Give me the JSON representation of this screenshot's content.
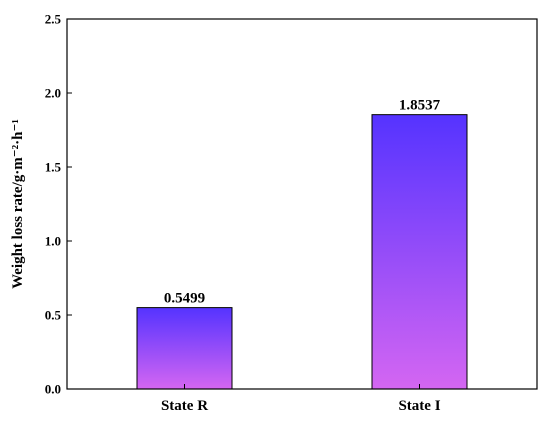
{
  "chart_data": {
    "type": "bar",
    "categories": [
      "State R",
      "State I"
    ],
    "values": [
      0.5499,
      1.8537
    ],
    "value_labels": [
      "0.5499",
      "1.8537"
    ],
    "title": "",
    "xlabel": "",
    "ylabel": "Weight loss rate/g·m⁻²·h⁻¹",
    "ylim": [
      0,
      2.5
    ],
    "yticks": [
      "0.0",
      "0.5",
      "1.0",
      "1.5",
      "2.0",
      "2.5"
    ],
    "grid": false,
    "legend": "none",
    "bar_gradient": {
      "top": "#5533ff",
      "bottom": "#d466f2"
    },
    "bar_edge_color": "#000000"
  }
}
